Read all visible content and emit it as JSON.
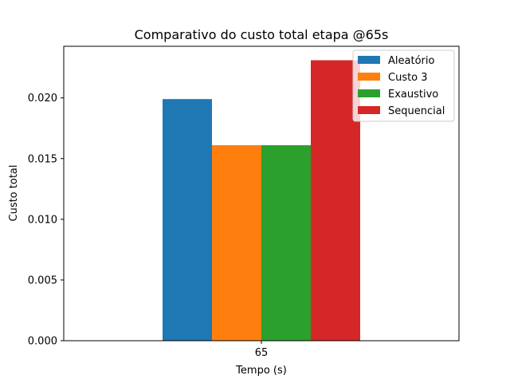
{
  "chart_data": {
    "type": "bar",
    "title": "Comparativo do custo total etapa @65s",
    "xlabel": "Tempo (s)",
    "ylabel": "Custo total",
    "categories": [
      "65"
    ],
    "series": [
      {
        "name": "Aleatório",
        "values": [
          0.0199
        ],
        "color": "#1f77b4"
      },
      {
        "name": "Custo 3",
        "values": [
          0.0161
        ],
        "color": "#ff7f0e"
      },
      {
        "name": "Exaustivo",
        "values": [
          0.0161
        ],
        "color": "#2ca02c"
      },
      {
        "name": "Sequencial",
        "values": [
          0.0231
        ],
        "color": "#d62728"
      }
    ],
    "yticks": [
      "0.000",
      "0.005",
      "0.010",
      "0.015",
      "0.020"
    ],
    "ylim": [
      0,
      0.02425
    ],
    "grid": false,
    "legend_position": "top-right"
  }
}
